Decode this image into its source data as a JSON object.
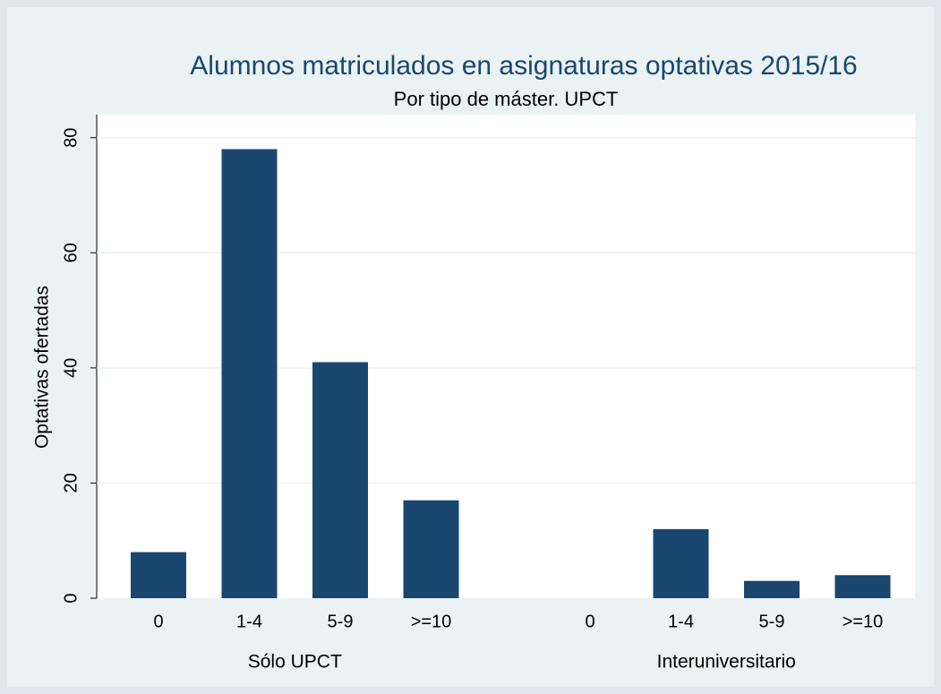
{
  "chart_data": {
    "type": "bar",
    "title": "Alumnos matriculados en asignaturas optativas 2015/16",
    "subtitle": "Por tipo de máster. UPCT",
    "ylabel": "Optativas ofertadas",
    "color": "#1a476f",
    "groups": [
      {
        "name": "Sólo UPCT",
        "categories": [
          "0",
          "1-4",
          "5-9",
          ">=10"
        ],
        "values": [
          8,
          78,
          41,
          17
        ]
      },
      {
        "name": "Interuniversitario",
        "categories": [
          "0",
          "1-4",
          "5-9",
          ">=10"
        ],
        "values": [
          0,
          12,
          3,
          4
        ]
      }
    ],
    "ylim": [
      0,
      84
    ],
    "yticks": [
      0,
      20,
      40,
      60,
      80
    ],
    "grid": true
  }
}
